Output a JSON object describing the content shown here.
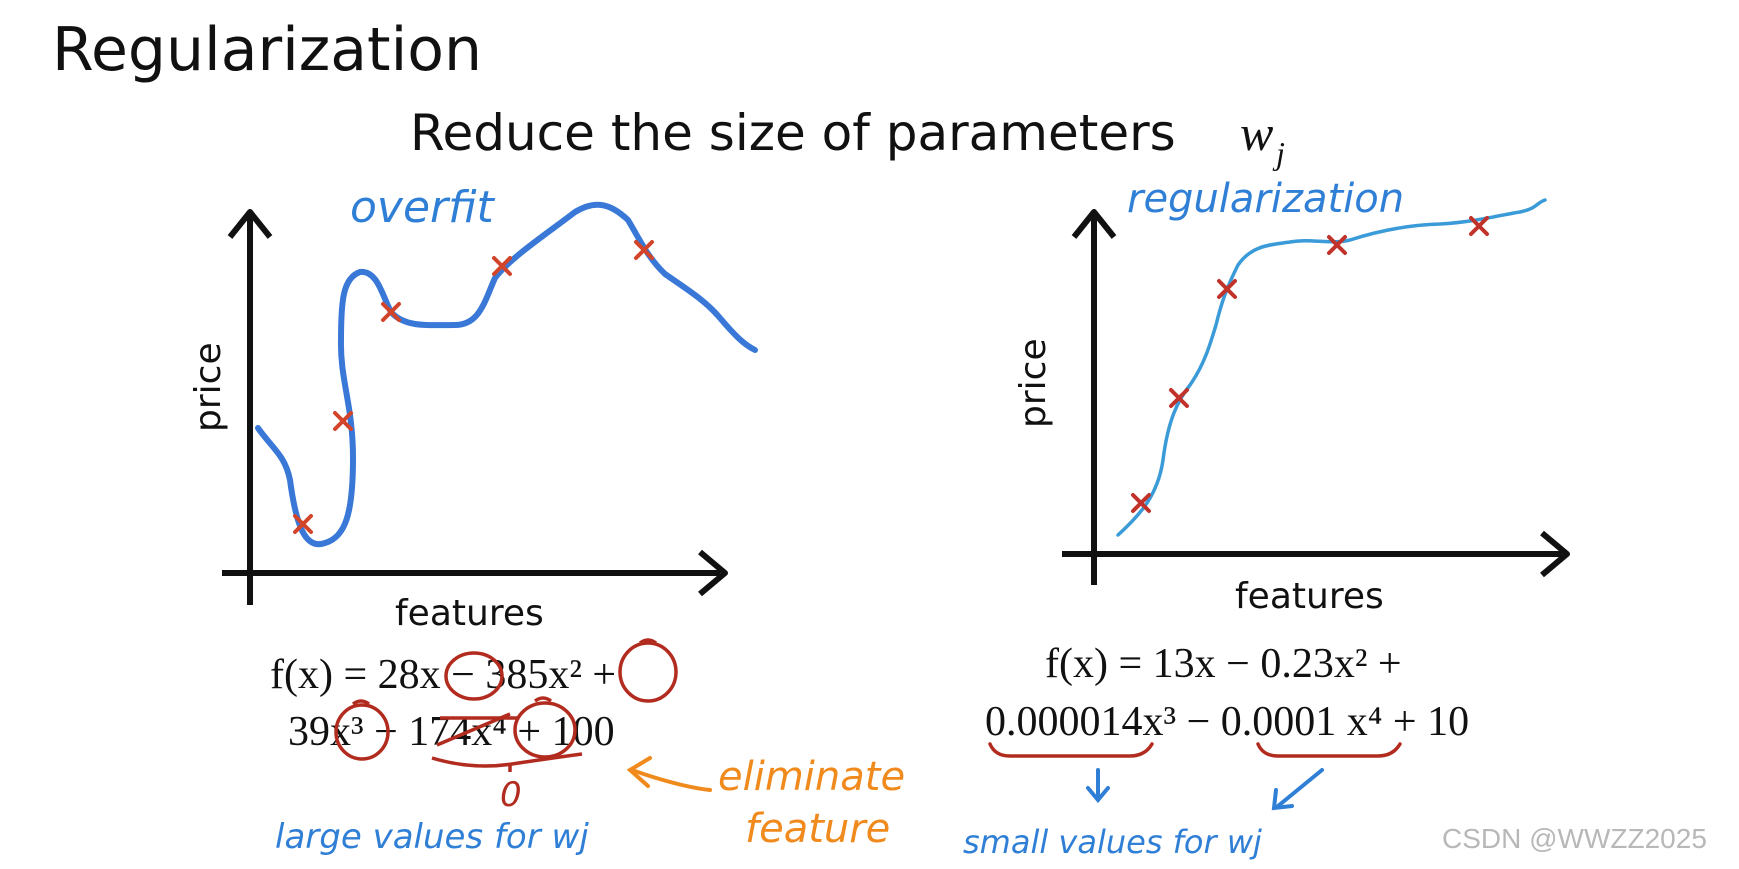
{
  "slide": {
    "title": "Regularization",
    "subtitle": "Reduce the size of parameters",
    "subtitle_symbol": "w",
    "subtitle_subscript": "j"
  },
  "left_plot": {
    "annotation": "overfit",
    "ylabel": "price",
    "xlabel": "features",
    "equation_line1": "f(x) = 28x − 385x² +",
    "equation_line2": "39x³ − 174x⁴ + 100",
    "zero_label": "0",
    "eliminate_line1": "eliminate",
    "eliminate_line2": "feature",
    "note": "large values for wj"
  },
  "right_plot": {
    "annotation": "regularization",
    "ylabel": "price",
    "xlabel": "features",
    "equation_line1": "f(x) = 13x − 0.23x² +",
    "equation_line2": "0.000014x³ − 0.0001 x⁴ + 10",
    "note": "small values for wj"
  },
  "watermark": "CSDN @WWZZ2025",
  "colors": {
    "curve": "#3a78d8",
    "handwriting_blue": "#2f7fd6",
    "marker": "#d2452a",
    "circle": "#b22b1f",
    "eliminate": "#f08a1c",
    "text": "#111111"
  }
}
